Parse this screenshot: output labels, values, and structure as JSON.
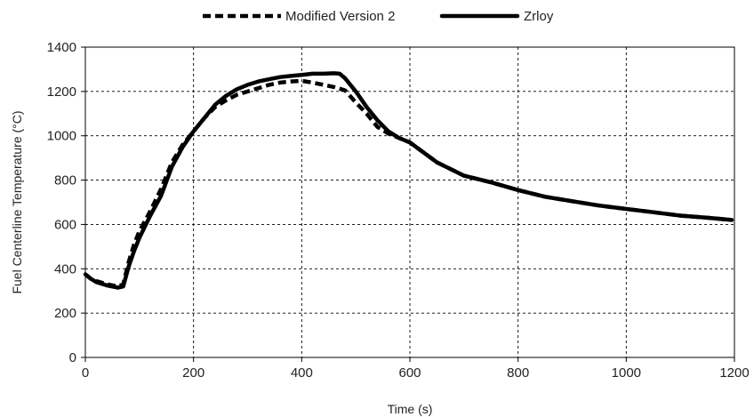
{
  "chart_data": {
    "type": "line",
    "title": "",
    "xlabel": "Time (s)",
    "ylabel": "Fuel Centerline Temperature (°C)",
    "xlim": [
      0,
      1200
    ],
    "ylim": [
      0,
      1400
    ],
    "x_ticks": [
      0,
      200,
      400,
      600,
      800,
      1000,
      1200
    ],
    "y_ticks": [
      0,
      200,
      400,
      600,
      800,
      1000,
      1200,
      1400
    ],
    "grid": true,
    "legend_position": "top-center",
    "series": [
      {
        "name": "Modified Version 2",
        "style": "dashed",
        "color": "#000000",
        "x": [
          0,
          10,
          20,
          40,
          60,
          70,
          80,
          90,
          100,
          120,
          140,
          160,
          180,
          200,
          220,
          240,
          260,
          280,
          300,
          320,
          340,
          360,
          380,
          400,
          420,
          440,
          460,
          480,
          500,
          520,
          540,
          560,
          580,
          600,
          650,
          700,
          750,
          800,
          850,
          900,
          950,
          1000,
          1050,
          1100,
          1150,
          1195
        ],
        "y": [
          375,
          355,
          345,
          330,
          320,
          330,
          430,
          510,
          570,
          660,
          760,
          880,
          960,
          1020,
          1080,
          1130,
          1160,
          1185,
          1200,
          1215,
          1230,
          1240,
          1245,
          1248,
          1240,
          1230,
          1220,
          1205,
          1150,
          1100,
          1040,
          1010,
          990,
          970,
          880,
          820,
          790,
          755,
          725,
          705,
          685,
          670,
          655,
          640,
          630,
          620
        ]
      },
      {
        "name": "Zrloy",
        "style": "solid",
        "color": "#000000",
        "x": [
          0,
          10,
          20,
          40,
          60,
          70,
          80,
          90,
          100,
          120,
          140,
          160,
          180,
          200,
          220,
          240,
          260,
          280,
          300,
          320,
          340,
          360,
          380,
          400,
          420,
          440,
          460,
          470,
          480,
          500,
          520,
          540,
          560,
          580,
          600,
          650,
          700,
          750,
          800,
          850,
          900,
          950,
          1000,
          1050,
          1100,
          1150,
          1195
        ],
        "y": [
          375,
          355,
          340,
          325,
          315,
          320,
          410,
          480,
          540,
          640,
          730,
          860,
          950,
          1020,
          1080,
          1140,
          1180,
          1210,
          1230,
          1245,
          1255,
          1265,
          1270,
          1275,
          1280,
          1280,
          1282,
          1280,
          1260,
          1200,
          1130,
          1070,
          1020,
          990,
          970,
          880,
          820,
          790,
          755,
          725,
          705,
          685,
          670,
          655,
          640,
          630,
          620
        ]
      }
    ]
  }
}
